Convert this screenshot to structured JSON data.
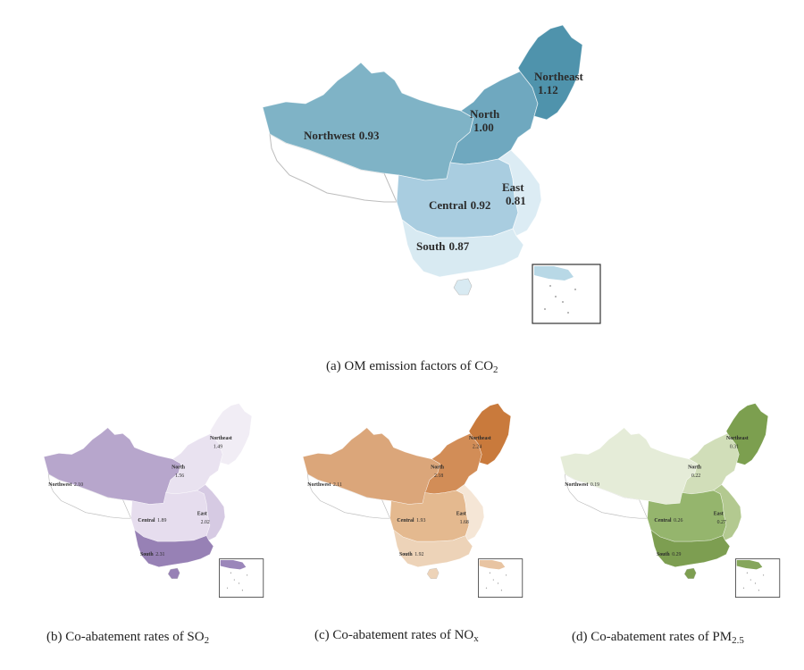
{
  "maps": [
    {
      "id": "a",
      "caption_pre": "(a) OM emission factors of CO",
      "caption_sub": "2",
      "palette": {
        "Northwest": "#7fb3c6",
        "North": "#6fa8bf",
        "Northeast": "#4f93ac",
        "Central": "#a9cde0",
        "East": "#dcecf4",
        "South": "#d8eaf2",
        "outline": "#bdbdbd",
        "inset": "#b8d8e6"
      },
      "regions": [
        {
          "name": "Northwest",
          "value": "0.93"
        },
        {
          "name": "North",
          "value": "1.00"
        },
        {
          "name": "Northeast",
          "value": "1.12"
        },
        {
          "name": "Central",
          "value": "0.92"
        },
        {
          "name": "East",
          "value": "0.81"
        },
        {
          "name": "South",
          "value": "0.87"
        }
      ]
    },
    {
      "id": "b",
      "caption_pre": "(b) Co-abatement rates of SO",
      "caption_sub": "2",
      "palette": {
        "Northwest": "#b7a6cc",
        "North": "#e9e2f0",
        "Northeast": "#f1edf5",
        "Central": "#e6ddee",
        "East": "#d6cae3",
        "South": "#9781b5",
        "outline": "#bdbdbd",
        "inset": "#9b86ba"
      },
      "regions": [
        {
          "name": "Northwest",
          "value": "2.10"
        },
        {
          "name": "North",
          "value": "1.56"
        },
        {
          "name": "Northeast",
          "value": "1.49"
        },
        {
          "name": "Central",
          "value": "1.89"
        },
        {
          "name": "East",
          "value": "2.02"
        },
        {
          "name": "South",
          "value": "2.31"
        }
      ]
    },
    {
      "id": "c",
      "caption_pre": "(c) Co-abatement rates of NO",
      "caption_sub": "x",
      "palette": {
        "Northwest": "#dba67a",
        "North": "#d28d57",
        "Northeast": "#c97a3c",
        "Central": "#e4b98f",
        "East": "#f5e6d6",
        "South": "#edd3b8",
        "outline": "#bdbdbd",
        "inset": "#e8c4a2"
      },
      "regions": [
        {
          "name": "Northwest",
          "value": "2.11"
        },
        {
          "name": "North",
          "value": "2.18"
        },
        {
          "name": "Northeast",
          "value": "2.24"
        },
        {
          "name": "Central",
          "value": "1.93"
        },
        {
          "name": "East",
          "value": "1.68"
        },
        {
          "name": "South",
          "value": "1.92"
        }
      ]
    },
    {
      "id": "d",
      "caption_pre": "(d) Co-abatement rates of PM",
      "caption_sub": "2.5",
      "palette": {
        "Northwest": "#e5ecd8",
        "North": "#d1deb9",
        "Northeast": "#7c9f4f",
        "Central": "#95b56d",
        "East": "#b3c990",
        "South": "#7d9e51",
        "outline": "#bdbdbd",
        "inset": "#85a65b"
      },
      "regions": [
        {
          "name": "Northwest",
          "value": "0.19"
        },
        {
          "name": "North",
          "value": "0.22"
        },
        {
          "name": "Northeast",
          "value": "0.31"
        },
        {
          "name": "Central",
          "value": "0.26"
        },
        {
          "name": "East",
          "value": "0.27"
        },
        {
          "name": "South",
          "value": "0.29"
        }
      ]
    }
  ]
}
